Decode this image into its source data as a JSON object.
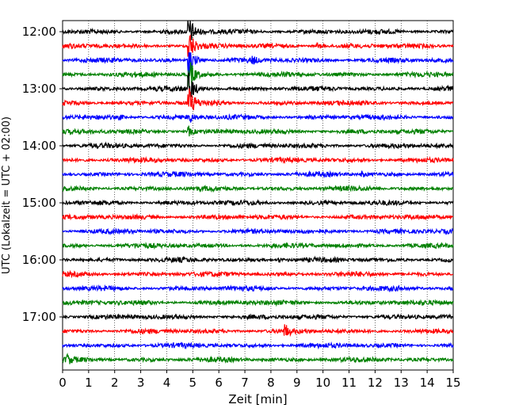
{
  "chart_data": {
    "type": "line",
    "title": "",
    "xlabel": "Zeit  [min]",
    "ylabel": "UTC (Lokalzeit = UTC + 02:00)",
    "xlim": [
      0,
      15
    ],
    "x_ticks": [
      "0",
      "1",
      "2",
      "3",
      "4",
      "5",
      "6",
      "7",
      "8",
      "9",
      "10",
      "11",
      "12",
      "13",
      "14",
      "15"
    ],
    "y_ticks": [
      "12:00",
      "13:00",
      "14:00",
      "15:00",
      "16:00",
      "17:00"
    ],
    "grid": "vertical dotted",
    "trace_interval_min": 15,
    "first_trace": "12:00",
    "last_trace": "17:45",
    "trace_count": 24,
    "trace_colors": [
      "#000000",
      "#ff0000",
      "#0000ff",
      "#008000"
    ],
    "events": [
      {
        "trace": "12:00",
        "minute": 4.85,
        "strength": 1.0
      },
      {
        "trace": "12:15",
        "minute": 4.85,
        "strength": 1.0
      },
      {
        "trace": "12:15",
        "minute": 9.8,
        "strength": 0.35
      },
      {
        "trace": "12:30",
        "minute": 4.85,
        "strength": 1.0
      },
      {
        "trace": "12:30",
        "minute": 7.3,
        "strength": 0.35
      },
      {
        "trace": "12:45",
        "minute": 4.85,
        "strength": 1.0
      },
      {
        "trace": "13:00",
        "minute": 4.85,
        "strength": 1.0
      },
      {
        "trace": "13:15",
        "minute": 4.85,
        "strength": 0.9
      },
      {
        "trace": "13:30",
        "minute": 4.85,
        "strength": 0.8
      },
      {
        "trace": "13:30",
        "minute": 2.2,
        "strength": 0.25
      },
      {
        "trace": "13:45",
        "minute": 4.85,
        "strength": 0.5
      },
      {
        "trace": "14:30",
        "minute": 11.5,
        "strength": 0.3
      },
      {
        "trace": "16:00",
        "minute": 8.3,
        "strength": 0.2
      },
      {
        "trace": "17:15",
        "minute": 8.55,
        "strength": 0.7
      },
      {
        "trace": "17:45",
        "minute": 0.15,
        "strength": 0.55
      }
    ]
  }
}
